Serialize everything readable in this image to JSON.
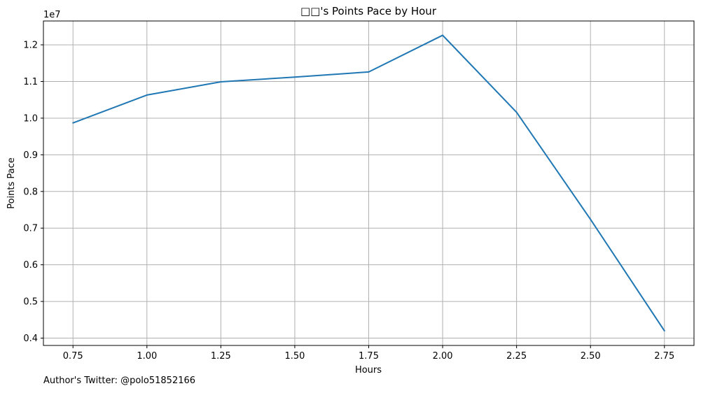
{
  "chart_data": {
    "type": "line",
    "title": "□□'s Points Pace by Hour",
    "xlabel": "Hours",
    "ylabel": "Points Pace",
    "y_offset_label": "1e7",
    "x": [
      0.75,
      1.0,
      1.25,
      1.5,
      1.75,
      2.0,
      2.25,
      2.5,
      2.75
    ],
    "series": [
      {
        "values": [
          9870000,
          10630000,
          10990000,
          11120000,
          11260000,
          12260000,
          10160000,
          7240000,
          4200000
        ]
      }
    ],
    "x_ticks": [
      "0.75",
      "1.00",
      "1.25",
      "1.50",
      "1.75",
      "2.00",
      "2.25",
      "2.50",
      "2.75"
    ],
    "y_ticks": [
      "0.4",
      "0.5",
      "0.6",
      "0.7",
      "0.8",
      "0.9",
      "1.0",
      "1.1",
      "1.2"
    ],
    "xlim": [
      0.65,
      2.85
    ],
    "ylim": [
      3800000,
      12650000
    ],
    "grid": true,
    "line_color": "#1f77b4",
    "grid_color": "#b0b0b0"
  },
  "footer_text": "Author's Twitter: @polo51852166"
}
